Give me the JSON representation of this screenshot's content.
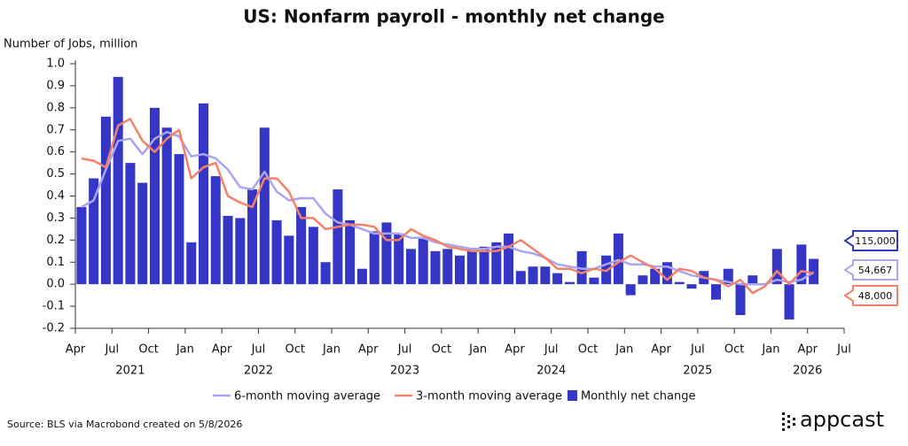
{
  "chart_data": {
    "type": "bar-line",
    "title": "US: Nonfarm payroll - monthly net change",
    "y_label": "Number of Jobs, million",
    "source": "Source: BLS via Macrobond created on 5/8/2026",
    "brand": "appcast",
    "x": [
      "2021-04",
      "2021-05",
      "2021-06",
      "2021-07",
      "2021-08",
      "2021-09",
      "2021-10",
      "2021-11",
      "2021-12",
      "2022-01",
      "2022-02",
      "2022-03",
      "2022-04",
      "2022-05",
      "2022-06",
      "2022-07",
      "2022-08",
      "2022-09",
      "2022-10",
      "2022-11",
      "2022-12",
      "2023-01",
      "2023-02",
      "2023-03",
      "2023-04",
      "2023-05",
      "2023-06",
      "2023-07",
      "2023-08",
      "2023-09",
      "2023-10",
      "2023-11",
      "2023-12",
      "2024-01",
      "2024-02",
      "2024-03",
      "2024-04",
      "2024-05",
      "2024-06",
      "2024-07",
      "2024-08",
      "2024-09",
      "2024-10",
      "2024-11",
      "2024-12",
      "2025-01",
      "2025-02",
      "2025-03",
      "2025-04",
      "2025-05",
      "2025-06",
      "2025-07",
      "2025-08",
      "2025-09",
      "2025-10",
      "2025-11",
      "2025-12",
      "2026-01",
      "2026-02",
      "2026-03",
      "2026-04"
    ],
    "series": [
      {
        "name": "6-month moving average",
        "kind": "line",
        "color": "#aaa4f2",
        "end_label": "54,667",
        "values": [
          0.35,
          0.38,
          0.52,
          0.65,
          0.66,
          0.59,
          0.66,
          0.69,
          0.67,
          0.58,
          0.59,
          0.57,
          0.52,
          0.44,
          0.43,
          0.51,
          0.42,
          0.38,
          0.39,
          0.39,
          0.32,
          0.28,
          0.27,
          0.25,
          0.23,
          0.23,
          0.23,
          0.21,
          0.21,
          0.19,
          0.18,
          0.17,
          0.16,
          0.16,
          0.17,
          0.17,
          0.15,
          0.14,
          0.12,
          0.09,
          0.08,
          0.07,
          0.07,
          0.09,
          0.11,
          0.09,
          0.09,
          0.08,
          0.08,
          0.06,
          0.04,
          0.03,
          0.02,
          0.01,
          0.0,
          0.0,
          0.0,
          0.02,
          0.01,
          0.02,
          0.054667
        ]
      },
      {
        "name": "3-month moving average",
        "kind": "line",
        "color": "#f4826a",
        "end_label": "48,000",
        "values": [
          0.57,
          0.56,
          0.53,
          0.72,
          0.75,
          0.65,
          0.6,
          0.66,
          0.7,
          0.48,
          0.53,
          0.55,
          0.4,
          0.37,
          0.35,
          0.48,
          0.48,
          0.42,
          0.3,
          0.3,
          0.25,
          0.26,
          0.27,
          0.27,
          0.26,
          0.2,
          0.2,
          0.25,
          0.22,
          0.2,
          0.17,
          0.16,
          0.15,
          0.15,
          0.15,
          0.17,
          0.2,
          0.16,
          0.12,
          0.07,
          0.07,
          0.05,
          0.07,
          0.06,
          0.1,
          0.13,
          0.1,
          0.07,
          0.02,
          0.07,
          0.06,
          0.03,
          0.02,
          -0.01,
          0.02,
          -0.04,
          -0.01,
          0.06,
          0.0,
          0.06,
          0.048
        ]
      },
      {
        "name": "Monthly net change",
        "kind": "bar",
        "color": "#3636c6",
        "end_label": "115,000",
        "values": [
          0.35,
          0.48,
          0.76,
          0.94,
          0.55,
          0.46,
          0.8,
          0.71,
          0.59,
          0.19,
          0.82,
          0.49,
          0.31,
          0.3,
          0.43,
          0.71,
          0.29,
          0.22,
          0.35,
          0.26,
          0.1,
          0.43,
          0.29,
          0.07,
          0.24,
          0.28,
          0.23,
          0.16,
          0.21,
          0.15,
          0.16,
          0.13,
          0.16,
          0.17,
          0.19,
          0.23,
          0.06,
          0.08,
          0.08,
          0.05,
          0.01,
          0.15,
          0.03,
          0.13,
          0.23,
          -0.05,
          0.04,
          0.07,
          0.1,
          0.01,
          -0.02,
          0.06,
          -0.07,
          0.07,
          -0.14,
          0.04,
          0.0,
          0.16,
          -0.16,
          0.18,
          0.115
        ]
      }
    ],
    "xlim": [
      "2021-04",
      "2026-07"
    ],
    "xticks": [
      {
        "value": "2021-04",
        "label": "Apr"
      },
      {
        "value": "2021-07",
        "label": "Jul"
      },
      {
        "value": "2021-10",
        "label": "Oct"
      },
      {
        "value": "2022-01",
        "label": "Jan"
      },
      {
        "value": "2022-04",
        "label": "Apr"
      },
      {
        "value": "2022-07",
        "label": "Jul"
      },
      {
        "value": "2022-10",
        "label": "Oct"
      },
      {
        "value": "2023-01",
        "label": "Jan"
      },
      {
        "value": "2023-04",
        "label": "Apr"
      },
      {
        "value": "2023-07",
        "label": "Jul"
      },
      {
        "value": "2023-10",
        "label": "Oct"
      },
      {
        "value": "2024-01",
        "label": "Jan"
      },
      {
        "value": "2024-04",
        "label": "Apr"
      },
      {
        "value": "2024-07",
        "label": "Jul"
      },
      {
        "value": "2024-10",
        "label": "Oct"
      },
      {
        "value": "2025-01",
        "label": "Jan"
      },
      {
        "value": "2025-04",
        "label": "Apr"
      },
      {
        "value": "2025-07",
        "label": "Jul"
      },
      {
        "value": "2025-10",
        "label": "Oct"
      },
      {
        "value": "2026-01",
        "label": "Jan"
      },
      {
        "value": "2026-04",
        "label": "Apr"
      },
      {
        "value": "2026-07",
        "label": "Jul"
      }
    ],
    "year_labels": [
      "2021",
      "2022",
      "2023",
      "2024",
      "2025",
      "2026"
    ],
    "ylim": [
      -0.2,
      1
    ],
    "yticks": [
      -0.2,
      -0.1,
      {
        "value": 0,
        "label": "0.0"
      },
      0.1,
      0.2,
      0.3,
      0.4,
      0.5,
      0.6,
      0.7,
      0.8,
      0.9,
      {
        "value": 1,
        "label": "1.0"
      }
    ],
    "grid": false
  }
}
